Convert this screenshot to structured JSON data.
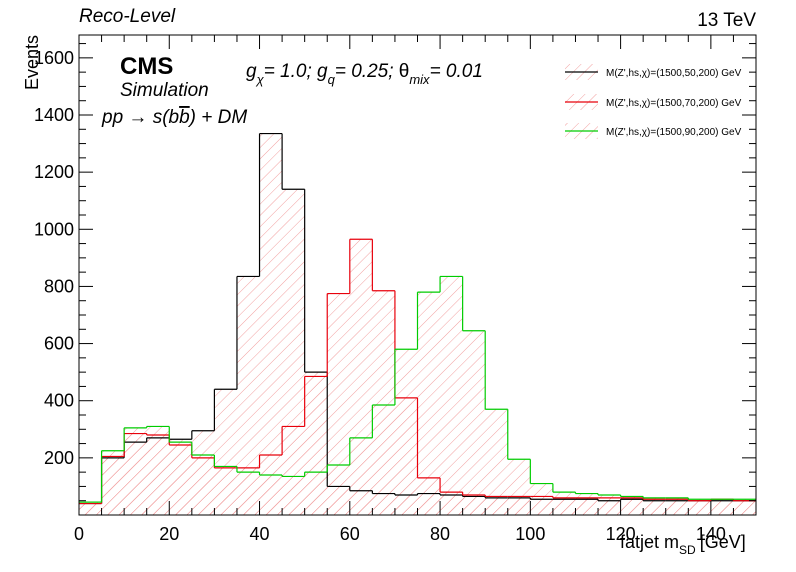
{
  "header": {
    "left_label": "Reco-Level",
    "right_label": "13 TeV"
  },
  "annotations": {
    "cms": "CMS",
    "simulation": "Simulation",
    "process": "pp → s(bb̄) + DM",
    "couplings": "g_χ= 1.0; g_q= 0.25; θ_mix= 0.01"
  },
  "chart_data": {
    "type": "histogram",
    "xlabel": "fatjet m_SD [GeV]",
    "ylabel": "Events",
    "xlim": [
      0,
      150
    ],
    "ylim": [
      0,
      1680
    ],
    "x_ticks": [
      0,
      20,
      40,
      60,
      80,
      100,
      120,
      140
    ],
    "y_ticks": [
      200,
      400,
      600,
      800,
      1000,
      1200,
      1400,
      1600
    ],
    "bin_edges": [
      0,
      5,
      10,
      15,
      20,
      25,
      30,
      35,
      40,
      45,
      50,
      55,
      60,
      65,
      70,
      75,
      80,
      85,
      90,
      95,
      100,
      105,
      110,
      115,
      120,
      125,
      130,
      135,
      140,
      145,
      150
    ],
    "legend_position": "top-right",
    "grid": false,
    "series": [
      {
        "name": "M(Z',hs,χ)=(1500,50,200) GeV",
        "color": "#000000",
        "values": [
          40,
          200,
          255,
          270,
          265,
          295,
          440,
          835,
          1335,
          1140,
          500,
          100,
          85,
          75,
          70,
          75,
          70,
          65,
          60,
          60,
          55,
          55,
          55,
          50,
          55,
          50,
          50,
          50,
          50,
          50
        ]
      },
      {
        "name": "M(Z',hs,χ)=(1500,70,200) GeV",
        "color": "#e8000b",
        "values": [
          40,
          205,
          285,
          280,
          245,
          200,
          165,
          165,
          210,
          310,
          485,
          775,
          965,
          785,
          410,
          130,
          80,
          70,
          65,
          65,
          65,
          60,
          60,
          60,
          60,
          55,
          55,
          50,
          55,
          50
        ]
      },
      {
        "name": "M(Z',hs,χ)=(1500,90,200) GeV",
        "color": "#00cc00",
        "values": [
          45,
          225,
          305,
          310,
          255,
          210,
          170,
          150,
          140,
          135,
          150,
          175,
          270,
          385,
          580,
          780,
          835,
          645,
          370,
          195,
          110,
          80,
          75,
          70,
          65,
          60,
          60,
          55,
          55,
          55
        ]
      }
    ]
  }
}
